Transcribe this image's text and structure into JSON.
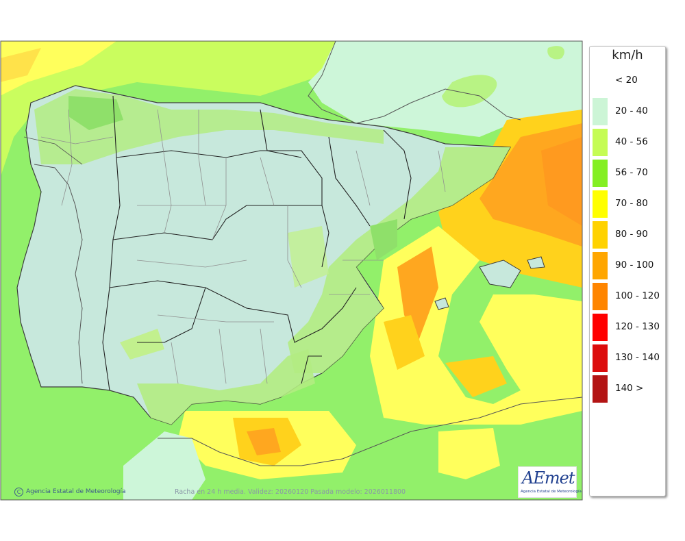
{
  "map": {
    "caption": "Racha en 24 h media. Validez: 20260120 Pasada modelo: 2026011800",
    "credit": "Agencia Estatal de Meteorología",
    "copyright_symbol": "C",
    "colors": {
      "sea_pale": "#cdf6d9",
      "lime": "#c9ff60",
      "green": "#8ff25a",
      "yellow": "#ffff5e",
      "amber": "#ffd21c",
      "orange": "#ffa71f",
      "dark_orange": "#ff8a1f",
      "land": "#c7e8dc"
    }
  },
  "legend": {
    "title": "km/h",
    "items": [
      {
        "label": "< 20",
        "color": "#ffffff"
      },
      {
        "label": "20 - 40",
        "color": "#ccf5d6"
      },
      {
        "label": "40 - 56",
        "color": "#c5fc54"
      },
      {
        "label": "56 - 70",
        "color": "#84ef23"
      },
      {
        "label": "70 - 80",
        "color": "#ffff00"
      },
      {
        "label": "80 - 90",
        "color": "#ffd200"
      },
      {
        "label": "90 - 100",
        "color": "#ffa600"
      },
      {
        "label": "100 - 120",
        "color": "#ff8500"
      },
      {
        "label": "120 - 130",
        "color": "#ff0000"
      },
      {
        "label": "130 - 140",
        "color": "#dc0d0d"
      },
      {
        "label": "140 >",
        "color": "#b31414"
      }
    ]
  },
  "logo": {
    "text": "AEmet",
    "subtext": "Agencia Estatal de Meteorología"
  }
}
